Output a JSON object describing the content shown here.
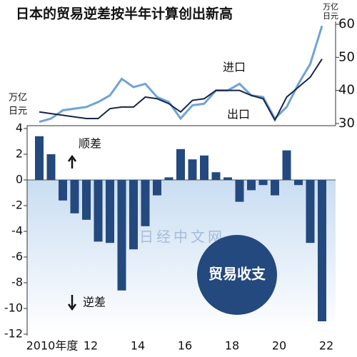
{
  "chart_data": [
    {
      "type": "line",
      "title": "日本的贸易逆差按半年计算创出新高",
      "units": [
        "万亿",
        "日元"
      ],
      "series": [
        {
          "name": "进口",
          "color": "#6fa3d6",
          "axis": "y2",
          "values": [
            30.5,
            31.5,
            34,
            34.5,
            35,
            36.5,
            38.5,
            43.5,
            41,
            42,
            38,
            36.5,
            31.5,
            35.5,
            36,
            40,
            40,
            42,
            38.5,
            38,
            31.5,
            35,
            42,
            48,
            59.5
          ]
        },
        {
          "name": "出口",
          "color": "#16264a",
          "axis": "y2",
          "values": [
            33.5,
            33,
            32.5,
            32,
            31.5,
            31.5,
            34.5,
            35,
            35,
            38,
            37.5,
            36,
            33.5,
            37,
            37.5,
            40,
            40,
            40,
            38.5,
            37.5,
            31,
            38,
            41,
            44,
            49.5
          ]
        }
      ],
      "y2lim": [
        30,
        60
      ],
      "y2ticks": [
        30,
        40,
        50,
        60
      ]
    },
    {
      "type": "bar",
      "units": [
        "万亿",
        "日元"
      ],
      "categories": [
        "2010年度",
        null,
        null,
        null,
        "12",
        null,
        null,
        null,
        "14",
        null,
        null,
        null,
        "16",
        null,
        null,
        null,
        "18",
        null,
        null,
        null,
        "20",
        null,
        null,
        null,
        "22"
      ],
      "values": [
        3.4,
        2.0,
        -1.6,
        -2.6,
        -3.1,
        -4.8,
        -4.9,
        -8.6,
        -5.4,
        -3.6,
        -1.2,
        0.2,
        2.4,
        1.6,
        1.9,
        0.6,
        0.2,
        -1.7,
        -0.8,
        -0.4,
        -1.2,
        2.3,
        -0.4,
        -4.9,
        -11.0
      ],
      "color": "#24497e",
      "ylim": [
        -12,
        4
      ],
      "yticks": [
        4,
        2,
        0,
        -2,
        -4,
        -6,
        -8,
        -10,
        -12
      ],
      "annotations": {
        "surplus": "顺差",
        "deficit": "逆差",
        "badge": "贸易收支",
        "watermark": "日经中文网"
      }
    }
  ]
}
